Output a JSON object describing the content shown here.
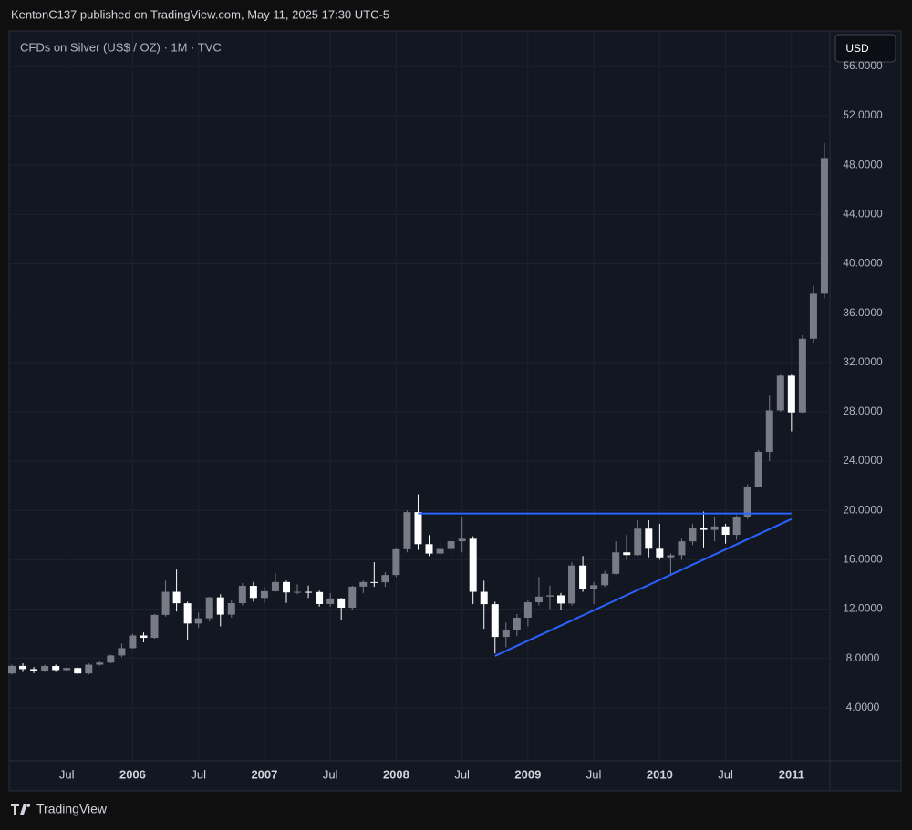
{
  "header": "KentonC137 published on TradingView.com, May 11, 2025 17:30 UTC-5",
  "footer": "TradingView",
  "currency_button": "USD",
  "chart_data": {
    "type": "candlestick",
    "title": "CFDs on Silver (US$ / OZ) · 1M · TVC",
    "categories": [
      "2005-02",
      "2005-03",
      "2005-04",
      "2005-05",
      "2005-06",
      "2005-07",
      "2005-08",
      "2005-09",
      "2005-10",
      "2005-11",
      "2005-12",
      "2006-01",
      "2006-02",
      "2006-03",
      "2006-04",
      "2006-05",
      "2006-06",
      "2006-07",
      "2006-08",
      "2006-09",
      "2006-10",
      "2006-11",
      "2006-12",
      "2007-01",
      "2007-02",
      "2007-03",
      "2007-04",
      "2007-05",
      "2007-06",
      "2007-07",
      "2007-08",
      "2007-09",
      "2007-10",
      "2007-11",
      "2007-12",
      "2008-01",
      "2008-02",
      "2008-03",
      "2008-04",
      "2008-05",
      "2008-06",
      "2008-07",
      "2008-08",
      "2008-09",
      "2008-10",
      "2008-11",
      "2008-12",
      "2009-01",
      "2009-02",
      "2009-03",
      "2009-04",
      "2009-05",
      "2009-06",
      "2009-07",
      "2009-08",
      "2009-09",
      "2009-10",
      "2009-11",
      "2009-12",
      "2010-01",
      "2010-02",
      "2010-03",
      "2010-04",
      "2010-05",
      "2010-06",
      "2010-07",
      "2010-08",
      "2010-09",
      "2010-10",
      "2010-11",
      "2010-12",
      "2011-01",
      "2011-02",
      "2011-03",
      "2011-04"
    ],
    "open": [
      6.78,
      7.39,
      7.13,
      6.95,
      7.38,
      7.05,
      7.22,
      6.78,
      7.49,
      7.66,
      8.24,
      8.83,
      9.86,
      9.67,
      11.53,
      13.4,
      12.47,
      10.83,
      11.25,
      12.95,
      11.55,
      12.48,
      13.88,
      12.9,
      13.45,
      14.19,
      13.35,
      13.4,
      13.38,
      12.41,
      12.86,
      12.11,
      13.82,
      14.19,
      14.17,
      14.76,
      16.85,
      19.86,
      17.26,
      16.5,
      16.87,
      17.5,
      17.7,
      13.4,
      12.4,
      9.74,
      10.27,
      11.3,
      12.55,
      13.01,
      13.11,
      12.45,
      15.53,
      13.65,
      13.93,
      14.86,
      16.6,
      16.38,
      18.52,
      16.89,
      16.19,
      16.37,
      17.49,
      18.6,
      18.42,
      18.7,
      18.02,
      19.44,
      21.93,
      24.74,
      28.11,
      30.92,
      27.94,
      33.92,
      37.57
    ],
    "high": [
      7.5,
      7.6,
      7.3,
      7.5,
      7.5,
      7.3,
      7.3,
      7.6,
      7.8,
      8.3,
      9.2,
      10.0,
      10.1,
      11.6,
      14.3,
      15.2,
      12.6,
      11.7,
      13.0,
      13.2,
      12.7,
      14.1,
      14.2,
      13.8,
      14.9,
      14.3,
      14.0,
      13.9,
      13.5,
      13.3,
      12.9,
      13.9,
      14.3,
      15.8,
      15.0,
      16.9,
      20.0,
      21.3,
      18.0,
      17.6,
      17.8,
      19.5,
      17.9,
      14.3,
      12.6,
      10.9,
      11.6,
      12.7,
      14.6,
      13.9,
      13.3,
      15.8,
      16.3,
      14.2,
      15.1,
      17.5,
      18.0,
      19.2,
      19.2,
      18.9,
      16.5,
      17.7,
      18.9,
      19.9,
      19.5,
      18.9,
      19.6,
      22.1,
      24.9,
      29.3,
      31.0,
      31.0,
      34.2,
      38.2,
      49.8
    ],
    "low": [
      6.7,
      6.9,
      6.8,
      6.9,
      6.9,
      6.9,
      6.7,
      6.7,
      7.4,
      7.6,
      8.1,
      8.8,
      9.3,
      9.6,
      11.4,
      11.8,
      9.5,
      10.5,
      11.0,
      10.6,
      11.3,
      12.3,
      12.6,
      12.5,
      13.4,
      12.5,
      13.2,
      12.9,
      12.2,
      12.2,
      11.1,
      11.9,
      13.3,
      13.8,
      13.8,
      14.6,
      16.6,
      16.8,
      16.3,
      16.1,
      16.3,
      16.6,
      12.4,
      10.4,
      8.4,
      8.9,
      9.8,
      10.6,
      12.3,
      12.0,
      11.9,
      12.3,
      13.4,
      12.4,
      13.8,
      14.8,
      16.0,
      16.3,
      16.2,
      16.0,
      14.8,
      16.0,
      17.2,
      17.0,
      17.5,
      17.3,
      17.6,
      19.3,
      21.9,
      24.0,
      28.0,
      26.4,
      27.9,
      33.6,
      37.2
    ],
    "close": [
      7.39,
      7.13,
      6.95,
      7.38,
      7.05,
      7.22,
      6.78,
      7.49,
      7.66,
      8.24,
      8.83,
      9.86,
      9.67,
      11.53,
      13.4,
      12.47,
      10.83,
      11.25,
      12.95,
      11.55,
      12.48,
      13.88,
      12.9,
      13.45,
      14.19,
      13.35,
      13.4,
      13.38,
      12.41,
      12.86,
      12.11,
      13.82,
      14.19,
      14.17,
      14.76,
      16.85,
      19.86,
      17.26,
      16.5,
      16.87,
      17.5,
      17.7,
      13.4,
      12.4,
      9.74,
      10.27,
      11.3,
      12.55,
      13.01,
      13.11,
      12.45,
      15.53,
      13.65,
      13.93,
      14.86,
      16.6,
      16.38,
      18.52,
      16.89,
      16.19,
      16.37,
      17.49,
      18.6,
      18.42,
      18.7,
      18.02,
      19.44,
      21.93,
      24.74,
      28.11,
      30.92,
      27.94,
      33.92,
      37.57,
      48.58
    ],
    "up_color": "#787b86",
    "down_color": "#ffffff",
    "ylim": [
      -0.3,
      58.8
    ],
    "yticks": [
      {
        "value": 4,
        "label": "4.0000"
      },
      {
        "value": 8,
        "label": "8.0000"
      },
      {
        "value": 12,
        "label": "12.0000"
      },
      {
        "value": 16,
        "label": "16.0000"
      },
      {
        "value": 20,
        "label": "20.0000"
      },
      {
        "value": 24,
        "label": "24.0000"
      },
      {
        "value": 28,
        "label": "28.0000"
      },
      {
        "value": 32,
        "label": "32.0000"
      },
      {
        "value": 36,
        "label": "36.0000"
      },
      {
        "value": 40,
        "label": "40.0000"
      },
      {
        "value": 44,
        "label": "44.0000"
      },
      {
        "value": 48,
        "label": "48.0000"
      },
      {
        "value": 52,
        "label": "52.0000"
      },
      {
        "value": 56,
        "label": "56.0000"
      }
    ],
    "xticks": [
      {
        "value": "2005-07",
        "label": "Jul"
      },
      {
        "value": "2006-01",
        "label": "2006"
      },
      {
        "value": "2006-07",
        "label": "Jul"
      },
      {
        "value": "2007-01",
        "label": "2007"
      },
      {
        "value": "2007-07",
        "label": "Jul"
      },
      {
        "value": "2008-01",
        "label": "2008"
      },
      {
        "value": "2008-07",
        "label": "Jul"
      },
      {
        "value": "2009-01",
        "label": "2009"
      },
      {
        "value": "2009-07",
        "label": "Jul"
      },
      {
        "value": "2010-01",
        "label": "2010"
      },
      {
        "value": "2010-07",
        "label": "Jul"
      },
      {
        "value": "2011-01",
        "label": "2011"
      }
    ],
    "grid": true,
    "lines": [
      {
        "color": "#2962ff",
        "x": [
          "2008-03",
          "2011-01"
        ],
        "y": [
          19.75,
          19.75
        ]
      },
      {
        "color": "#2962ff",
        "x": [
          "2008-10",
          "2011-01"
        ],
        "y": [
          8.2,
          19.3
        ]
      }
    ]
  }
}
